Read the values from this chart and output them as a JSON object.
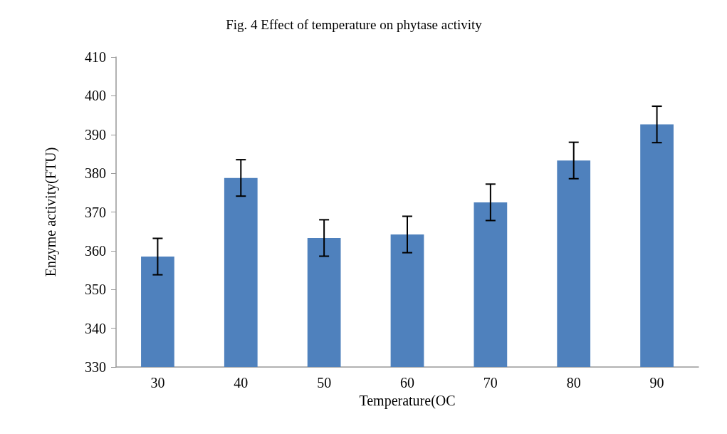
{
  "chart_data": {
    "type": "bar",
    "title": "Fig. 4 Effect of temperature on phytase activity",
    "xlabel": "Temperature(OC",
    "ylabel": "Enzyme activity(FTU)",
    "categories": [
      "30",
      "40",
      "50",
      "60",
      "70",
      "80",
      "90"
    ],
    "values": [
      358.5,
      378.8,
      363.3,
      364.2,
      372.5,
      383.3,
      392.6
    ],
    "errors": [
      4.7,
      4.7,
      4.7,
      4.7,
      4.7,
      4.7,
      4.7
    ],
    "color": "#4f81bd",
    "ylim": [
      330,
      410
    ],
    "yticks": [
      330,
      340,
      350,
      360,
      370,
      380,
      390,
      400,
      410
    ],
    "grid": false
  }
}
